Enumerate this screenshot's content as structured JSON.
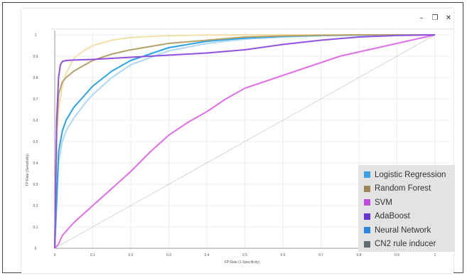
{
  "window": {
    "minimize_icon": "minimize-icon",
    "maximize_icon": "restore-icon",
    "close_icon": "close-icon",
    "minimize_glyph": "–",
    "maximize_glyph": "❐",
    "close_glyph": "✕"
  },
  "chart_data": {
    "type": "line",
    "title": "",
    "xlabel": "FP Rate (1-Specificity)",
    "ylabel": "TP Rate (Sensitivity)",
    "xlim": [
      0,
      1
    ],
    "ylim": [
      0,
      1
    ],
    "xticks": [
      "0",
      "0.1",
      "0.2",
      "0.3",
      "0.4",
      "0.5",
      "0.6",
      "0.7",
      "0.8",
      "0.9",
      "1"
    ],
    "yticks": [
      "0",
      "0.1",
      "0.2",
      "0.3",
      "0.4",
      "0.5",
      "0.6",
      "0.7",
      "0.8",
      "0.9",
      "1"
    ],
    "grid": true,
    "legend_position": "bottom-right",
    "diagonal": {
      "x": [
        0,
        1
      ],
      "y": [
        0,
        1
      ],
      "color": "#cccccc"
    },
    "series": [
      {
        "name": "Logistic Regression",
        "color": "#29a3e8",
        "x": [
          0,
          0.01,
          0.02,
          0.03,
          0.05,
          0.08,
          0.1,
          0.15,
          0.2,
          0.3,
          0.4,
          0.5,
          0.6,
          0.7,
          0.8,
          0.9,
          1.0
        ],
        "y": [
          0,
          0.45,
          0.55,
          0.6,
          0.66,
          0.72,
          0.76,
          0.83,
          0.88,
          0.94,
          0.97,
          0.985,
          0.993,
          0.997,
          0.999,
          1.0,
          1.0
        ]
      },
      {
        "name": "Random Forest",
        "color": "#b5a16a",
        "x": [
          0,
          0.005,
          0.01,
          0.02,
          0.03,
          0.05,
          0.08,
          0.1,
          0.15,
          0.2,
          0.3,
          0.4,
          0.5,
          0.6,
          0.7,
          0.8,
          0.9,
          1.0
        ],
        "y": [
          0,
          0.55,
          0.72,
          0.78,
          0.8,
          0.83,
          0.86,
          0.88,
          0.91,
          0.93,
          0.96,
          0.975,
          0.99,
          0.995,
          0.998,
          1.0,
          1.0,
          1.0
        ]
      },
      {
        "name": "SVM",
        "color": "#e070e8",
        "x": [
          0,
          0.01,
          0.02,
          0.05,
          0.1,
          0.15,
          0.2,
          0.25,
          0.3,
          0.35,
          0.4,
          0.45,
          0.5,
          0.55,
          0.6,
          0.65,
          0.7,
          0.75,
          0.8,
          0.85,
          0.9,
          0.95,
          1.0
        ],
        "y": [
          0,
          0.02,
          0.06,
          0.12,
          0.2,
          0.28,
          0.36,
          0.45,
          0.53,
          0.59,
          0.64,
          0.7,
          0.75,
          0.78,
          0.81,
          0.84,
          0.87,
          0.9,
          0.92,
          0.94,
          0.96,
          0.98,
          1.0
        ]
      },
      {
        "name": "AdaBoost",
        "color": "#8f52e0",
        "x": [
          0,
          0.005,
          0.01,
          0.015,
          0.02,
          0.03,
          0.05,
          0.1,
          0.2,
          0.3,
          0.4,
          0.5,
          0.6,
          0.7,
          0.8,
          0.9,
          1.0
        ],
        "y": [
          0,
          0.6,
          0.8,
          0.86,
          0.875,
          0.88,
          0.882,
          0.885,
          0.895,
          0.905,
          0.915,
          0.93,
          0.955,
          0.975,
          0.99,
          0.997,
          1.0
        ]
      },
      {
        "name": "Neural Network",
        "color": "#aed8f5",
        "x": [
          0,
          0.01,
          0.02,
          0.03,
          0.05,
          0.08,
          0.1,
          0.15,
          0.2,
          0.3,
          0.4,
          0.5,
          0.6,
          0.7,
          0.8,
          0.9,
          1.0
        ],
        "y": [
          0,
          0.4,
          0.5,
          0.55,
          0.61,
          0.68,
          0.72,
          0.8,
          0.86,
          0.925,
          0.96,
          0.98,
          0.99,
          0.996,
          0.999,
          1.0,
          1.0
        ]
      },
      {
        "name": "CN2 rule inducer",
        "color": "#f5dfa8",
        "x": [
          0,
          0.005,
          0.01,
          0.02,
          0.03,
          0.05,
          0.08,
          0.1,
          0.15,
          0.2,
          0.3,
          0.4,
          0.5,
          1.0
        ],
        "y": [
          0,
          0.5,
          0.65,
          0.76,
          0.82,
          0.89,
          0.93,
          0.95,
          0.975,
          0.988,
          0.996,
          0.999,
          1.0,
          1.0
        ]
      }
    ]
  },
  "legend": {
    "items": [
      {
        "label": "Logistic Regression",
        "color": "#3ba1e6"
      },
      {
        "label": "Random Forest",
        "color": "#9c8855"
      },
      {
        "label": "SVM",
        "color": "#c04ae0"
      },
      {
        "label": "AdaBoost",
        "color": "#6a33d6"
      },
      {
        "label": "Neural Network",
        "color": "#2a86e0"
      },
      {
        "label": "CN2 rule inducer",
        "color": "#5e6e6e"
      }
    ]
  }
}
